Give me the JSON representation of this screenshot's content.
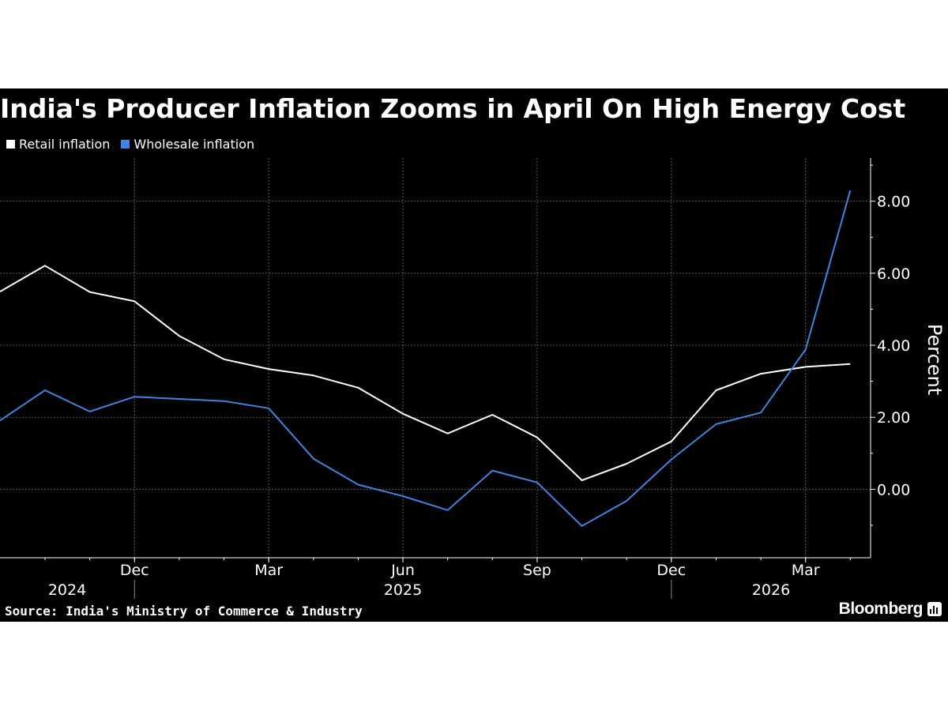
{
  "chart_data": {
    "type": "line",
    "title": "India's Producer Inflation Zooms in April On High Energy Cost",
    "ylabel": "Percent",
    "ylim": [
      -1.9,
      9.2
    ],
    "yticks": [
      0,
      2,
      4,
      6,
      8
    ],
    "ytick_labels": [
      "0.00",
      "2.00",
      "4.00",
      "6.00",
      "8.00"
    ],
    "x": [
      "2024-10",
      "2024-11",
      "2024-12",
      "2025-01",
      "2025-02",
      "2025-03",
      "2025-04",
      "2025-05",
      "2025-06",
      "2025-07",
      "2025-08",
      "2025-09",
      "2025-10",
      "2025-11",
      "2025-12",
      "2026-01",
      "2026-02",
      "2026-03",
      "2026-04"
    ],
    "xtick_months": [
      {
        "label": "Dec",
        "date": "2024-12"
      },
      {
        "label": "Mar",
        "date": "2025-03"
      },
      {
        "label": "Jun",
        "date": "2025-06"
      },
      {
        "label": "Sep",
        "date": "2025-09"
      },
      {
        "label": "Dec",
        "date": "2025-12"
      },
      {
        "label": "Mar",
        "date": "2026-03"
      }
    ],
    "xtick_years": [
      {
        "label": "2024"
      },
      {
        "label": "2025"
      },
      {
        "label": "2026"
      }
    ],
    "grid": true,
    "legend_position": "top-left",
    "series": [
      {
        "name": "Retail inflation",
        "color": "#ffffff",
        "values": [
          6.21,
          5.48,
          5.22,
          4.26,
          3.61,
          3.34,
          3.16,
          2.82,
          2.1,
          1.55,
          2.07,
          1.44,
          0.25,
          0.71,
          1.33,
          2.75,
          3.21,
          3.4,
          3.48
        ]
      },
      {
        "name": "Wholesale inflation",
        "color": "#3d85e0",
        "values": [
          2.75,
          2.16,
          2.57,
          2.51,
          2.45,
          2.25,
          0.85,
          0.13,
          -0.19,
          -0.58,
          0.52,
          0.19,
          -1.02,
          -0.32,
          0.83,
          1.81,
          2.13,
          3.88,
          8.3
        ]
      }
    ],
    "left_edge": {
      "retail": 5.49,
      "wholesale": 1.91
    }
  },
  "footer": {
    "source": "Source: India's Ministry of Commerce & Industry",
    "brand": "Bloomberg"
  },
  "colors": {
    "background": "#000000",
    "grid": "#555555",
    "text": "#ffffff"
  }
}
